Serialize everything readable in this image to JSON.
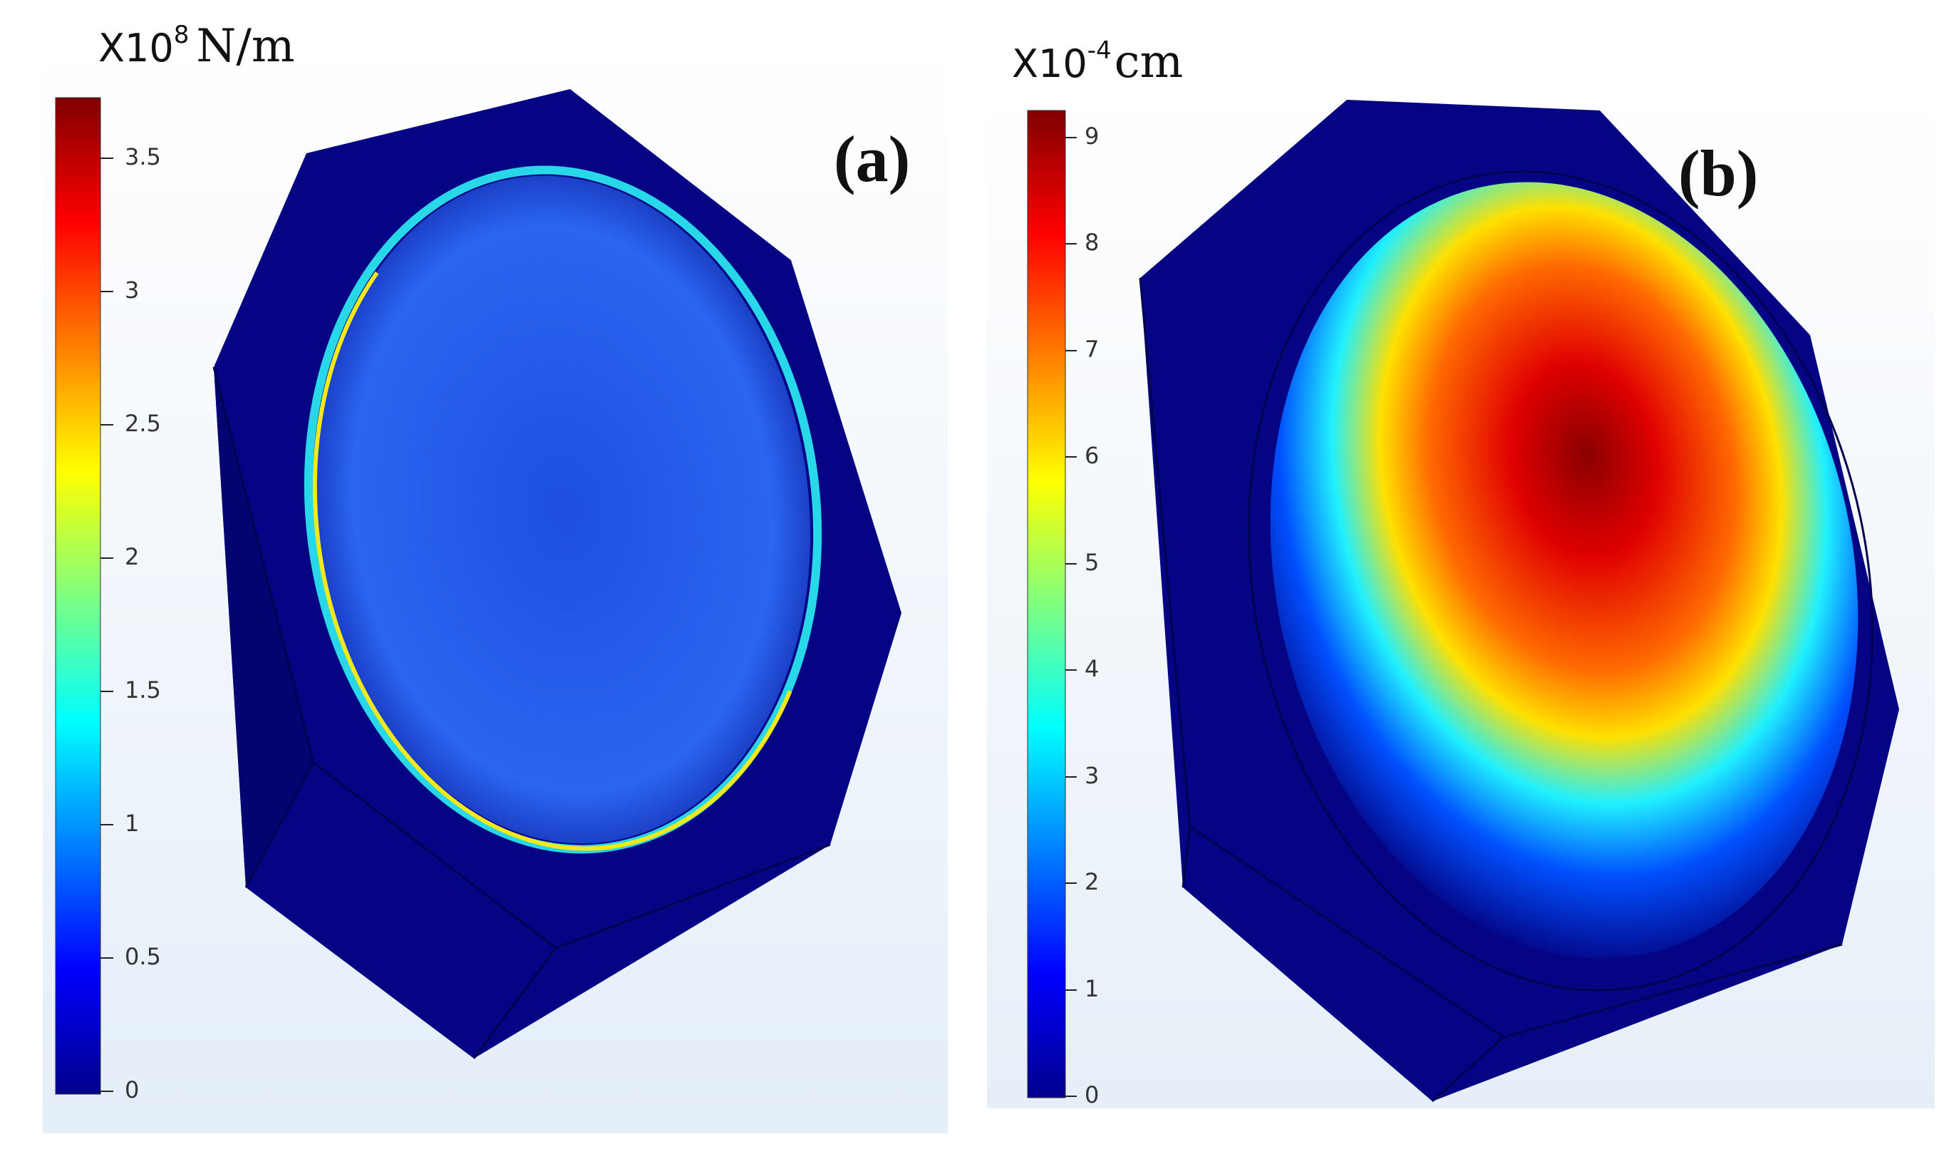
{
  "panels": [
    {
      "label": "(a)",
      "colorbar": {
        "multiplier_base": "X10",
        "multiplier_exponent": "8",
        "unit": "N/m",
        "ticks": [
          "0",
          "0.5",
          "1",
          "1.5",
          "2",
          "2.5",
          "3",
          "3.5"
        ]
      }
    },
    {
      "label": "(b)",
      "colorbar": {
        "multiplier_base": "X10",
        "multiplier_exponent": "-4",
        "unit": "cm",
        "ticks": [
          "0",
          "1",
          "2",
          "3",
          "4",
          "5",
          "6",
          "7",
          "8",
          "9"
        ]
      }
    }
  ],
  "colors": {
    "jet_dark_blue": "#00008b",
    "jet_blue": "#0000ff",
    "jet_cyan": "#00ffff",
    "jet_yellow": "#ffff00",
    "jet_red": "#ff0000",
    "jet_dark_red": "#800000",
    "solid_body": "#040484",
    "plate_a": "#1f55e6",
    "background": "#e6eef7"
  }
}
